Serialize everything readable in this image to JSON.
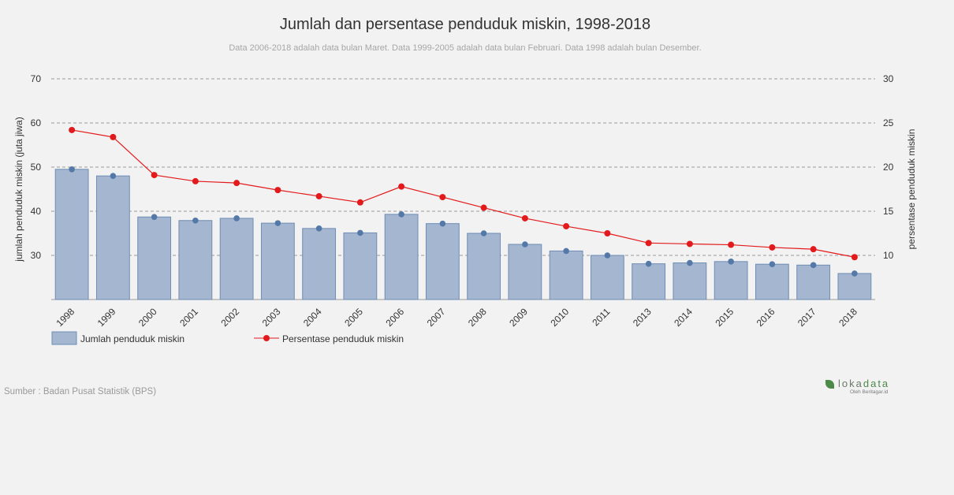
{
  "title": "Jumlah dan persentase penduduk miskin, 1998-2018",
  "subtitle": "Data 2006-2018 adalah data bulan Maret. Data 1999-2005 adalah data bulan Februari. Data 1998 adalah bulan Desember.",
  "source": "Sumber : Badan Pusat Statistik (BPS)",
  "brand": {
    "name_part1": "loka",
    "name_part2": "data",
    "byline": "Oleh Beritagar.id",
    "icon": "leaf-icon"
  },
  "colors": {
    "bar": "#a5b6d0",
    "bar_stroke": "#6f8db5",
    "bar_dot": "#5479a8",
    "line": "#e31a1c",
    "grid": "#999999"
  },
  "chart_data": {
    "type": "bar",
    "categories": [
      "1998",
      "1999",
      "2000",
      "2001",
      "2002",
      "2003",
      "2004",
      "2005",
      "2006",
      "2007",
      "2008",
      "2009",
      "2010",
      "2011",
      "2013",
      "2014",
      "2015",
      "2016",
      "2017",
      "2018"
    ],
    "series": [
      {
        "name": "Jumlah penduduk miskin",
        "type": "bar",
        "axis": "left",
        "values": [
          49.5,
          48.0,
          38.7,
          37.9,
          38.4,
          37.3,
          36.1,
          35.1,
          39.3,
          37.2,
          35.0,
          32.5,
          31.0,
          30.0,
          28.1,
          28.3,
          28.6,
          28.0,
          27.8,
          25.9
        ]
      },
      {
        "name": "Persentase penduduk miskin",
        "type": "line",
        "axis": "right",
        "values": [
          24.2,
          23.4,
          19.1,
          18.4,
          18.2,
          17.4,
          16.7,
          16.0,
          17.8,
          16.6,
          15.4,
          14.2,
          13.3,
          12.5,
          11.4,
          11.3,
          11.2,
          10.9,
          10.7,
          9.8
        ]
      }
    ],
    "y_left": {
      "label": "jumlah penduduk miskin (juta jiwa)",
      "ticks": [
        30,
        40,
        50,
        60,
        70
      ],
      "range": [
        20,
        70
      ]
    },
    "y_right": {
      "label": "persentase penduduk miskin",
      "ticks": [
        10,
        15,
        20,
        25,
        30
      ],
      "range": [
        5,
        30
      ]
    },
    "grid": true,
    "legend_position": "bottom-left"
  }
}
